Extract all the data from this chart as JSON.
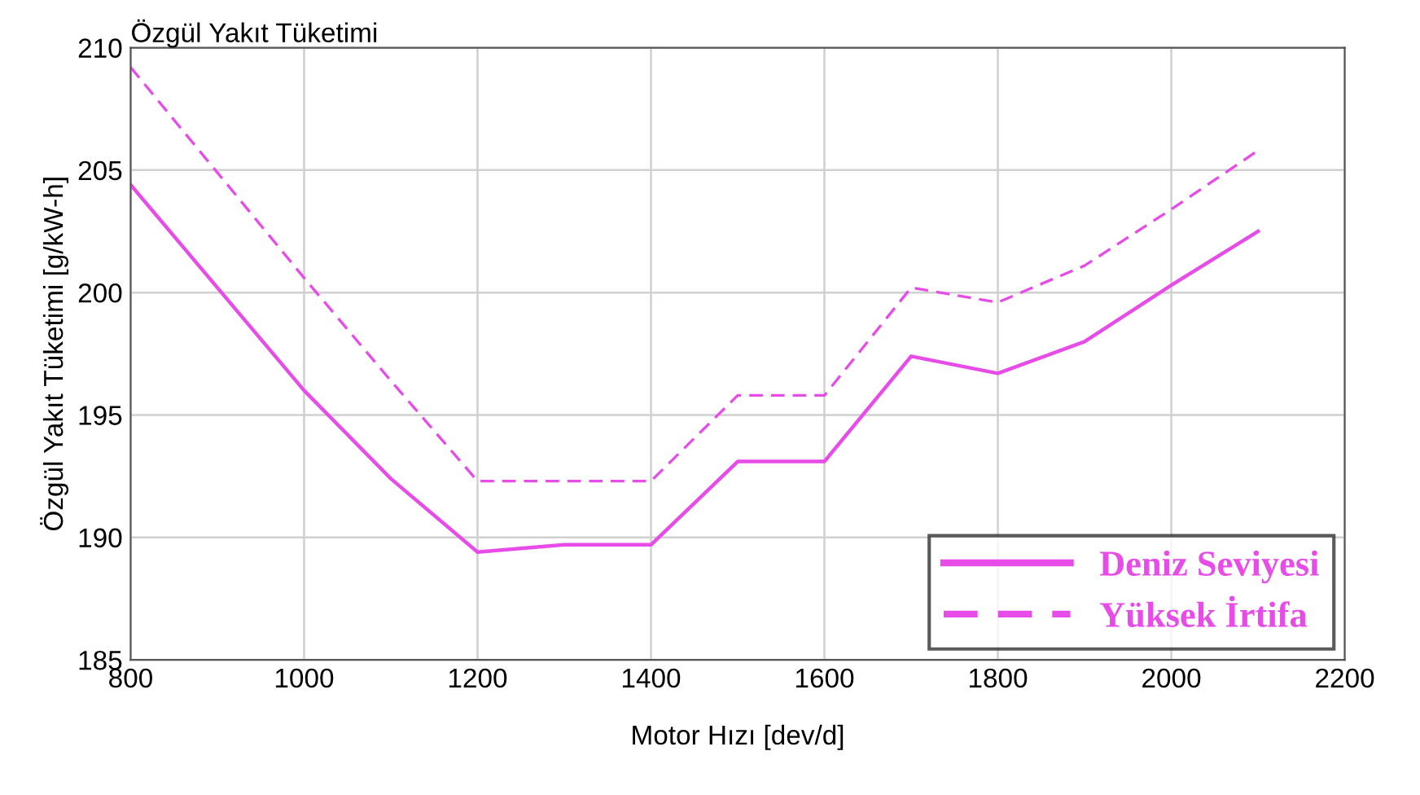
{
  "chart_data": {
    "type": "line",
    "title": "Özgül Yakıt Tüketimi",
    "xlabel": "Motor Hızı [dev/d]",
    "ylabel": "Özgül Yakıt Tüketimi [g/kW-h]",
    "x": [
      800,
      900,
      1000,
      1100,
      1200,
      1300,
      1400,
      1500,
      1600,
      1700,
      1800,
      1900,
      2000,
      2100
    ],
    "series": [
      {
        "name": "Deniz Seviyesi",
        "color": "#e84ce8",
        "line_style": "solid",
        "values": [
          204.4,
          200.2,
          196.0,
          192.4,
          189.4,
          189.7,
          189.7,
          193.1,
          193.1,
          197.4,
          196.7,
          198.0,
          200.3,
          202.5
        ]
      },
      {
        "name": "Yüksek İrtifa",
        "color": "#e84ce8",
        "line_style": "dashed",
        "values": [
          209.2,
          204.9,
          200.6,
          196.4,
          192.3,
          192.3,
          192.3,
          195.8,
          195.8,
          200.2,
          199.6,
          201.1,
          203.4,
          205.8
        ]
      }
    ],
    "xlim": [
      800,
      2200
    ],
    "xticks": [
      800,
      1000,
      1200,
      1400,
      1600,
      1800,
      2000,
      2200
    ],
    "ylim": [
      185,
      210
    ],
    "yticks": [
      185,
      190,
      195,
      200,
      205,
      210
    ],
    "grid": true,
    "legend": "bottom right",
    "marker": "none"
  }
}
